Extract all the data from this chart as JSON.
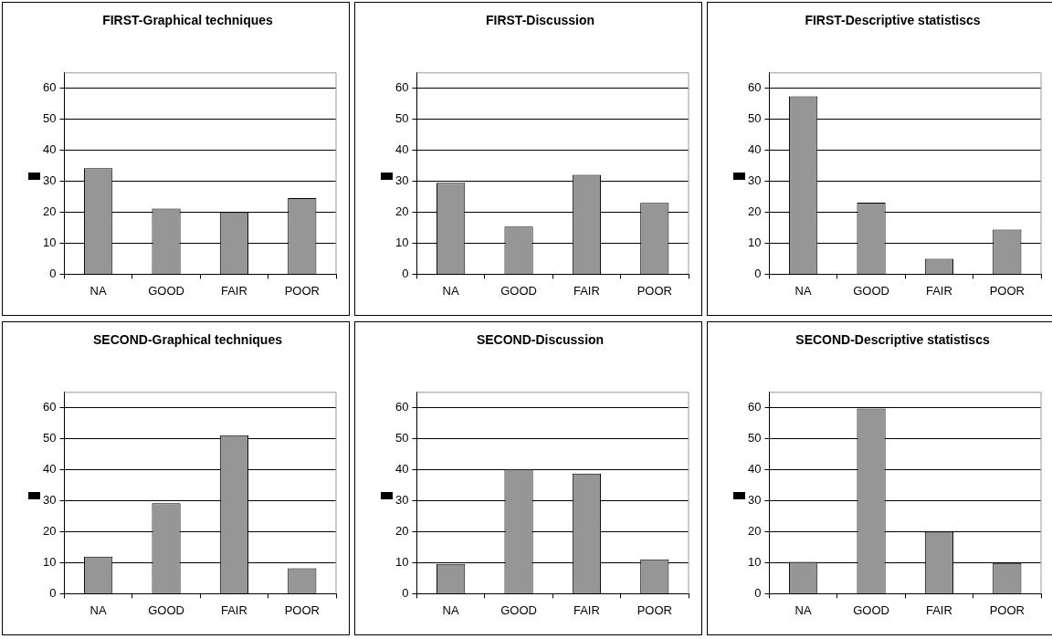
{
  "chart_data": [
    {
      "type": "bar",
      "title": "FIRST-Graphical techniques",
      "categories": [
        "NA",
        "GOOD",
        "FAIR",
        "POOR"
      ],
      "values": [
        34.2,
        21.2,
        20,
        24.6
      ],
      "color": "#969696",
      "ylim": [
        0,
        65
      ],
      "yticks": [
        0,
        10,
        20,
        30,
        40,
        50,
        60
      ],
      "grid": "y"
    },
    {
      "type": "bar",
      "title": "FIRST-Discussion",
      "categories": [
        "NA",
        "GOOD",
        "FAIR",
        "POOR"
      ],
      "values": [
        29.5,
        15.4,
        32.1,
        23
      ],
      "color": "#969696",
      "ylim": [
        0,
        65
      ],
      "yticks": [
        0,
        10,
        20,
        30,
        40,
        50,
        60
      ],
      "grid": "y"
    },
    {
      "type": "bar",
      "title": "FIRST-Descriptive statistiscs",
      "categories": [
        "NA",
        "GOOD",
        "FAIR",
        "POOR"
      ],
      "values": [
        57.4,
        23.1,
        5,
        14.4
      ],
      "color": "#969696",
      "ylim": [
        0,
        65
      ],
      "yticks": [
        0,
        10,
        20,
        30,
        40,
        50,
        60
      ],
      "grid": "y"
    },
    {
      "type": "bar",
      "title": "SECOND-Graphical techniques",
      "categories": [
        "NA",
        "GOOD",
        "FAIR",
        "POOR"
      ],
      "values": [
        12,
        29.2,
        51.2,
        8.2
      ],
      "color": "#969696",
      "ylim": [
        0,
        65
      ],
      "yticks": [
        0,
        10,
        20,
        30,
        40,
        50,
        60
      ],
      "grid": "y"
    },
    {
      "type": "bar",
      "title": "SECOND-Discussion",
      "categories": [
        "NA",
        "GOOD",
        "FAIR",
        "POOR"
      ],
      "values": [
        9.6,
        40.3,
        38.8,
        11.1
      ],
      "color": "#969696",
      "ylim": [
        0,
        65
      ],
      "yticks": [
        0,
        10,
        20,
        30,
        40,
        50,
        60
      ],
      "grid": "y"
    },
    {
      "type": "bar",
      "title": "SECOND-Descriptive statistiscs",
      "categories": [
        "NA",
        "GOOD",
        "FAIR",
        "POOR"
      ],
      "values": [
        10.3,
        59.8,
        20,
        9.9
      ],
      "color": "#969696",
      "ylim": [
        0,
        65
      ],
      "yticks": [
        0,
        10,
        20,
        30,
        40,
        50,
        60
      ],
      "grid": "y"
    }
  ]
}
